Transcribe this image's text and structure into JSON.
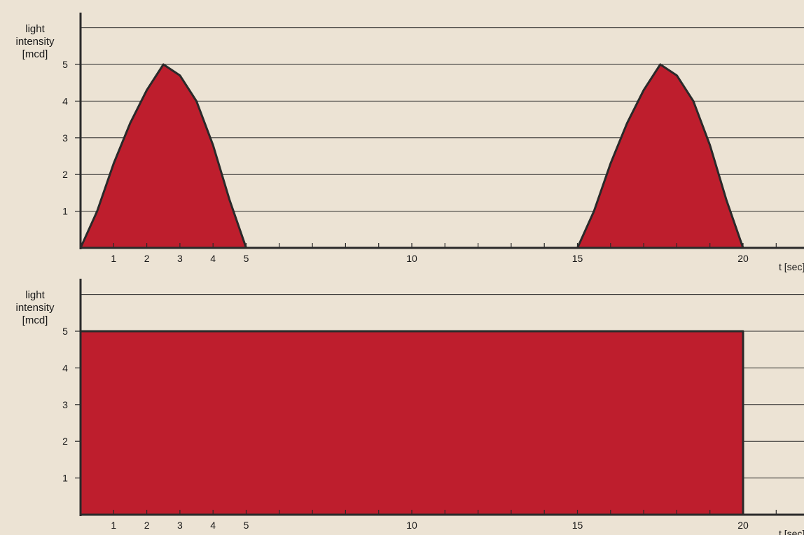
{
  "chart_data": [
    {
      "type": "area",
      "ylabel": [
        "light",
        "intensity",
        "[mcd]"
      ],
      "xlabel": "t [sec]",
      "x_ticks_labeled": [
        1,
        2,
        3,
        4,
        5,
        10,
        15,
        20
      ],
      "y_ticks_labeled": [
        1,
        2,
        3,
        4,
        5
      ],
      "xlim": [
        0,
        22
      ],
      "ylim": [
        0,
        6
      ],
      "grid": true,
      "series": [
        {
          "points": [
            [
              0,
              0
            ],
            [
              0.5,
              1.0
            ],
            [
              1.0,
              2.3
            ],
            [
              1.5,
              3.4
            ],
            [
              2.0,
              4.3
            ],
            [
              2.5,
              5.0
            ],
            [
              3.0,
              4.7
            ],
            [
              3.5,
              4.0
            ],
            [
              4.0,
              2.8
            ],
            [
              4.5,
              1.3
            ],
            [
              5.0,
              0
            ],
            [
              15.0,
              0
            ],
            [
              15.5,
              1.0
            ],
            [
              16.0,
              2.3
            ],
            [
              16.5,
              3.4
            ],
            [
              17.0,
              4.3
            ],
            [
              17.5,
              5.0
            ],
            [
              18.0,
              4.7
            ],
            [
              18.5,
              4.0
            ],
            [
              19.0,
              2.8
            ],
            [
              19.5,
              1.3
            ],
            [
              20.0,
              0
            ]
          ]
        }
      ],
      "colors": {
        "fill": "#be1e2d",
        "line": "#2a2a2a",
        "grid": "#2a2a2a",
        "background": "#ece3d4"
      }
    },
    {
      "type": "area",
      "ylabel": [
        "light",
        "intensity",
        "[mcd]"
      ],
      "xlabel": "t [sec]",
      "x_ticks_labeled": [
        1,
        2,
        3,
        4,
        5,
        10,
        15,
        20
      ],
      "y_ticks_labeled": [
        1,
        2,
        3,
        4,
        5
      ],
      "xlim": [
        0,
        22
      ],
      "ylim": [
        0,
        6
      ],
      "grid": true,
      "series": [
        {
          "points": [
            [
              0,
              0
            ],
            [
              0,
              5
            ],
            [
              20,
              5
            ],
            [
              20,
              0
            ]
          ]
        }
      ],
      "colors": {
        "fill": "#be1e2d",
        "line": "#2a2a2a",
        "grid": "#2a2a2a",
        "background": "#ece3d4"
      }
    }
  ]
}
